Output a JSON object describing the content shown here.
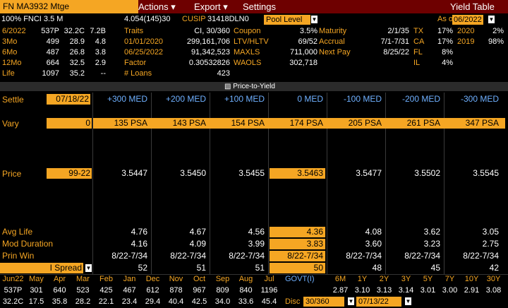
{
  "header": {
    "security": "FN MA3932 Mtge",
    "menu_actions": "Actions",
    "menu_export": "Export",
    "menu_settings": "Settings",
    "title": "Yield Table"
  },
  "info": {
    "line1_left": "100% FNCI 3.5 M",
    "line1_mid": "4.054(145)30",
    "cusip_label": "CUSIP",
    "cusip": "31418DLN0",
    "pool_level": "Pool Level",
    "as_of_label": "As of",
    "as_of": "06/2022"
  },
  "history": [
    {
      "l": "6/2022",
      "a": "537P",
      "b": "32.2C",
      "c": "7.2B"
    },
    {
      "l": "3Mo",
      "a": "499",
      "b": "28.9",
      "c": "4.8"
    },
    {
      "l": "6Mo",
      "a": "487",
      "b": "26.8",
      "c": "3.8"
    },
    {
      "l": "12Mo",
      "a": "664",
      "b": "32.5",
      "c": "2.9"
    },
    {
      "l": "Life",
      "a": "1097",
      "b": "35.2",
      "c": "--"
    }
  ],
  "traits": [
    {
      "k": "Traits",
      "v": "CI, 30/360"
    },
    {
      "k": "01/01/2020",
      "v": "299,161,706"
    },
    {
      "k": "06/25/2022",
      "v": "91,342,523"
    },
    {
      "k": "Factor",
      "v": "0.30532826"
    },
    {
      "k": "# Loans",
      "v": "423"
    }
  ],
  "coupon": [
    {
      "k": "Coupon",
      "v": "3.5%",
      "k2": "Maturity",
      "v2": "2/1/35"
    },
    {
      "k": "LTV/HLTV",
      "v": "69/52",
      "k2": "Accrual",
      "v2": "7/1-7/31"
    },
    {
      "k": "MAXLS",
      "v": "711,000",
      "k2": "Next Pay",
      "v2": "8/25/22"
    },
    {
      "k": "WAOLS",
      "v": "302,718",
      "k2": "",
      "v2": ""
    }
  ],
  "geo": [
    {
      "s": "TX",
      "p": "17%",
      "s2": "2020",
      "p2": "2%"
    },
    {
      "s": "CA",
      "p": "17%",
      "s2": "2019",
      "p2": "98%"
    },
    {
      "s": "FL",
      "p": "8%",
      "s2": "",
      "p2": ""
    },
    {
      "s": "IL",
      "p": "4%",
      "s2": "",
      "p2": ""
    }
  ],
  "tab": "Price-to-Yield",
  "table": {
    "settle_label": "Settle",
    "settle": "07/18/22",
    "scenarios": [
      "+300 MED",
      "+200 MED",
      "+100 MED",
      "0 MED",
      "-100 MED",
      "-200 MED",
      "-300 MED"
    ],
    "vary_label": "Vary",
    "vary_input": "0",
    "vary": [
      "135 PSA",
      "143 PSA",
      "154 PSA",
      "174 PSA",
      "205 PSA",
      "261 PSA",
      "347 PSA"
    ],
    "price_label": "Price",
    "price_input": "99-22",
    "price": [
      "3.5447",
      "3.5450",
      "3.5455",
      "3.5463",
      "3.5477",
      "3.5502",
      "3.5545"
    ],
    "avglife_label": "Avg Life",
    "avglife": [
      "4.76",
      "4.67",
      "4.56",
      "4.36",
      "4.08",
      "3.62",
      "3.05"
    ],
    "moddur_label": "Mod Duration",
    "moddur": [
      "4.16",
      "4.09",
      "3.99",
      "3.83",
      "3.60",
      "3.23",
      "2.75"
    ],
    "prinwin_label": "Prin Win",
    "prinwin": [
      "8/22-7/34",
      "8/22-7/34",
      "8/22-7/34",
      "8/22-7/34",
      "8/22-7/34",
      "8/22-7/34",
      "8/22-7/34"
    ],
    "ispread_label": "I Spread",
    "ispread": [
      "52",
      "51",
      "51",
      "50",
      "48",
      "45",
      "42"
    ]
  },
  "bottom": {
    "months": [
      "Jun22",
      "May",
      "Apr",
      "Mar",
      "Feb",
      "Jan",
      "Dec",
      "Nov",
      "Oct",
      "Sep",
      "Aug",
      "Jul"
    ],
    "row1": [
      "537P",
      "301",
      "640",
      "523",
      "425",
      "467",
      "612",
      "878",
      "967",
      "809",
      "840",
      "1196"
    ],
    "row2": [
      "32.2C",
      "17.5",
      "35.8",
      "28.2",
      "22.1",
      "23.4",
      "29.4",
      "40.4",
      "42.5",
      "34.0",
      "33.6",
      "45.4"
    ],
    "govt_label": "GOVT(I)",
    "tenors": [
      "6M",
      "1Y",
      "2Y",
      "3Y",
      "5Y",
      "7Y",
      "10Y",
      "30Y"
    ],
    "rates": [
      "2.87",
      "3.10",
      "3.13",
      "3.14",
      "3.01",
      "3.00",
      "2.91",
      "3.08"
    ],
    "disc_label": "Disc",
    "disc": "30/360",
    "disc_date": "07/13/22"
  }
}
